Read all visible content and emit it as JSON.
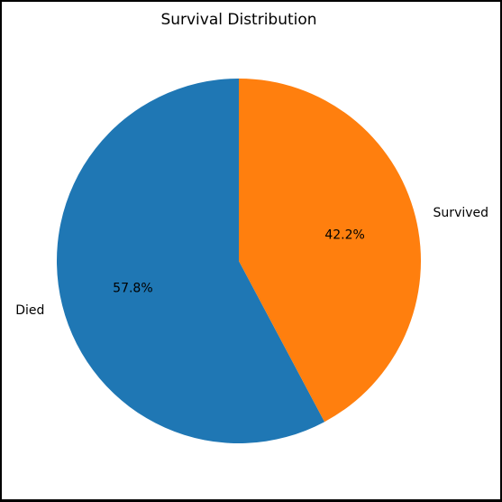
{
  "chart_data": {
    "type": "pie",
    "title": "Survival Distribution",
    "categories": [
      "Died",
      "Survived"
    ],
    "values": [
      57.8,
      42.2
    ],
    "value_labels": [
      "57.8%",
      "42.2%"
    ],
    "colors": [
      "#1f77b4",
      "#ff7f0e"
    ],
    "start_angle_deg": 90,
    "direction": "counterclockwise",
    "legend": "none"
  }
}
